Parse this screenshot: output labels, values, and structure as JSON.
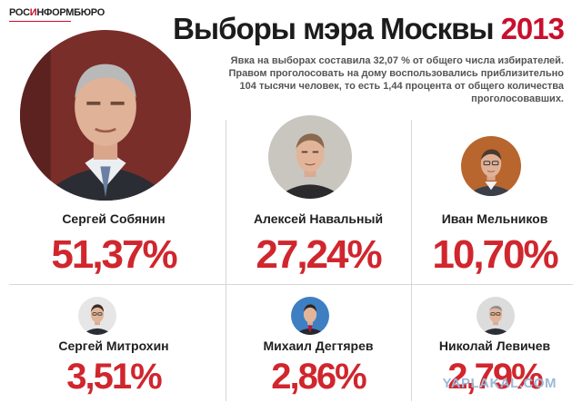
{
  "logo": {
    "prefix": "РОС",
    "mark": "И",
    "suffix": "НФОРМБЮРО"
  },
  "title": {
    "main": "Выборы мэра Москвы",
    "year": "2013"
  },
  "subtitle": "Явка на выборах составила 32,07 % от общего числа избирателей. Правом проголосовать на дому воспользовались приблизительно 104 тысячи человек, то есть 1,44 процента от общего количества проголосовавших.",
  "watermark": "YAPLAKAL.COM",
  "colors": {
    "accent": "#d0262e",
    "title": "#1c1c1c",
    "divider": "#d6d6d6"
  },
  "chart_data": {
    "type": "table",
    "title": "Выборы мэра Москвы 2013",
    "unit": "%",
    "categories": [
      "Сергей Собянин",
      "Алексей Навальный",
      "Иван Мельников",
      "Сергей Митрохин",
      "Михаил Дегтярев",
      "Николай Левичев"
    ],
    "values": [
      51.37,
      27.24,
      10.7,
      3.51,
      2.86,
      2.79
    ],
    "labels": [
      "51,37%",
      "27,24%",
      "10,70%",
      "3,51%",
      "2,86%",
      "2,79%"
    ]
  }
}
